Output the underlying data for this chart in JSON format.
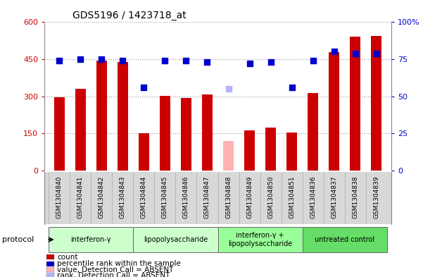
{
  "title": "GDS5196 / 1423718_at",
  "samples": [
    "GSM1304840",
    "GSM1304841",
    "GSM1304842",
    "GSM1304843",
    "GSM1304844",
    "GSM1304845",
    "GSM1304846",
    "GSM1304847",
    "GSM1304848",
    "GSM1304849",
    "GSM1304850",
    "GSM1304851",
    "GSM1304836",
    "GSM1304837",
    "GSM1304838",
    "GSM1304839"
  ],
  "bar_values": [
    295,
    330,
    445,
    438,
    150,
    302,
    292,
    307,
    120,
    163,
    172,
    152,
    312,
    478,
    540,
    545
  ],
  "bar_absent": [
    false,
    false,
    false,
    false,
    false,
    false,
    false,
    false,
    true,
    false,
    false,
    false,
    false,
    false,
    false,
    false
  ],
  "rank_values": [
    74,
    75,
    75,
    74,
    56,
    74,
    74,
    73,
    55,
    72,
    73,
    56,
    74,
    80,
    79,
    79
  ],
  "rank_absent": [
    false,
    false,
    false,
    false,
    false,
    false,
    false,
    false,
    true,
    false,
    false,
    false,
    false,
    false,
    false,
    false
  ],
  "bar_color_normal": "#cc0000",
  "bar_color_absent": "#ffb3b3",
  "rank_color_normal": "#0000cc",
  "rank_color_absent": "#b3b3ff",
  "ylim_left": [
    0,
    600
  ],
  "ylim_right": [
    0,
    100
  ],
  "yticks_left": [
    0,
    150,
    300,
    450,
    600
  ],
  "yticks_right": [
    0,
    25,
    50,
    75,
    100
  ],
  "ytick_labels_right": [
    "0",
    "25",
    "50",
    "75",
    "100%"
  ],
  "groups": [
    {
      "label": "interferon-γ",
      "start": 0,
      "end": 4,
      "color": "#ccffcc"
    },
    {
      "label": "lipopolysaccharide",
      "start": 4,
      "end": 8,
      "color": "#ccffcc"
    },
    {
      "label": "interferon-γ +\nlipopolysaccharide",
      "start": 8,
      "end": 12,
      "color": "#99ff99"
    },
    {
      "label": "untreated control",
      "start": 12,
      "end": 16,
      "color": "#66dd66"
    }
  ],
  "protocol_label": "protocol",
  "legend_items": [
    {
      "label": "count",
      "color": "#cc0000"
    },
    {
      "label": "percentile rank within the sample",
      "color": "#0000cc"
    },
    {
      "label": "value, Detection Call = ABSENT",
      "color": "#ffb3b3"
    },
    {
      "label": "rank, Detection Call = ABSENT",
      "color": "#b3b3ff"
    }
  ],
  "bar_width": 0.5,
  "rank_marker_size": 40,
  "xlim": [
    -0.7,
    15.7
  ]
}
